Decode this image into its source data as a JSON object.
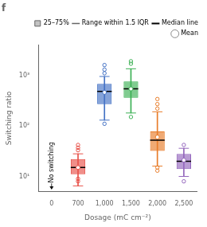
{
  "chart_data": {
    "type": "box",
    "title": "f",
    "xlabel": "Dosage (mC cm⁻²)",
    "ylabel": "Switching ratio",
    "categories": [
      "0",
      "700",
      "1,000",
      "1,500",
      "2,000",
      "2,500"
    ],
    "values": [
      null,
      {
        "q1": 11,
        "median": 15,
        "q3": 22,
        "whisker_low": 6.5,
        "whisker_high": 28,
        "mean": 15,
        "outliers_low": [
          8.0,
          9.0
        ],
        "outliers_high": [
          33,
          37,
          42
        ]
      },
      {
        "q1": 270,
        "median": 480,
        "q3": 680,
        "whisker_low": 130,
        "whisker_high": 950,
        "mean": 460,
        "outliers_low": [
          110
        ],
        "outliers_high": [
          1100,
          1300,
          1600
        ]
      },
      {
        "q1": 360,
        "median": 540,
        "q3": 760,
        "whisker_low": 180,
        "whisker_high": 1350,
        "mean": 540,
        "outliers_low": [
          150
        ],
        "outliers_high": [
          1700,
          1900
        ]
      },
      {
        "q1": 32,
        "median": 52,
        "q3": 78,
        "whisker_low": 16,
        "whisker_high": 190,
        "mean": 60,
        "outliers_low": [
          13,
          15
        ],
        "outliers_high": [
          220,
          270,
          340
        ]
      },
      {
        "q1": 14,
        "median": 20,
        "q3": 28,
        "whisker_low": 10,
        "whisker_high": 36,
        "mean": 21,
        "outliers_low": [
          8
        ],
        "outliers_high": [
          42
        ]
      }
    ],
    "colors": [
      null,
      "#e8524a",
      "#4472c4",
      "#3cb054",
      "#e87d2a",
      "#9467bd"
    ],
    "log": "y",
    "ylim": [
      5,
      4000
    ],
    "yticks": [
      {
        "value": 10,
        "label": "10¹"
      },
      {
        "value": 100,
        "label": "10²"
      },
      {
        "value": 1000,
        "label": "10³"
      }
    ],
    "grid": false,
    "legend": "upper right",
    "legend_items": [
      "25–75%",
      "Range within 1.5 IQR",
      "Median line",
      "Mean"
    ],
    "annotations": [
      {
        "text": "No switching",
        "x": "0",
        "y": 7.5,
        "arrow_from": 7.3,
        "arrow_to": 5.5
      }
    ]
  }
}
